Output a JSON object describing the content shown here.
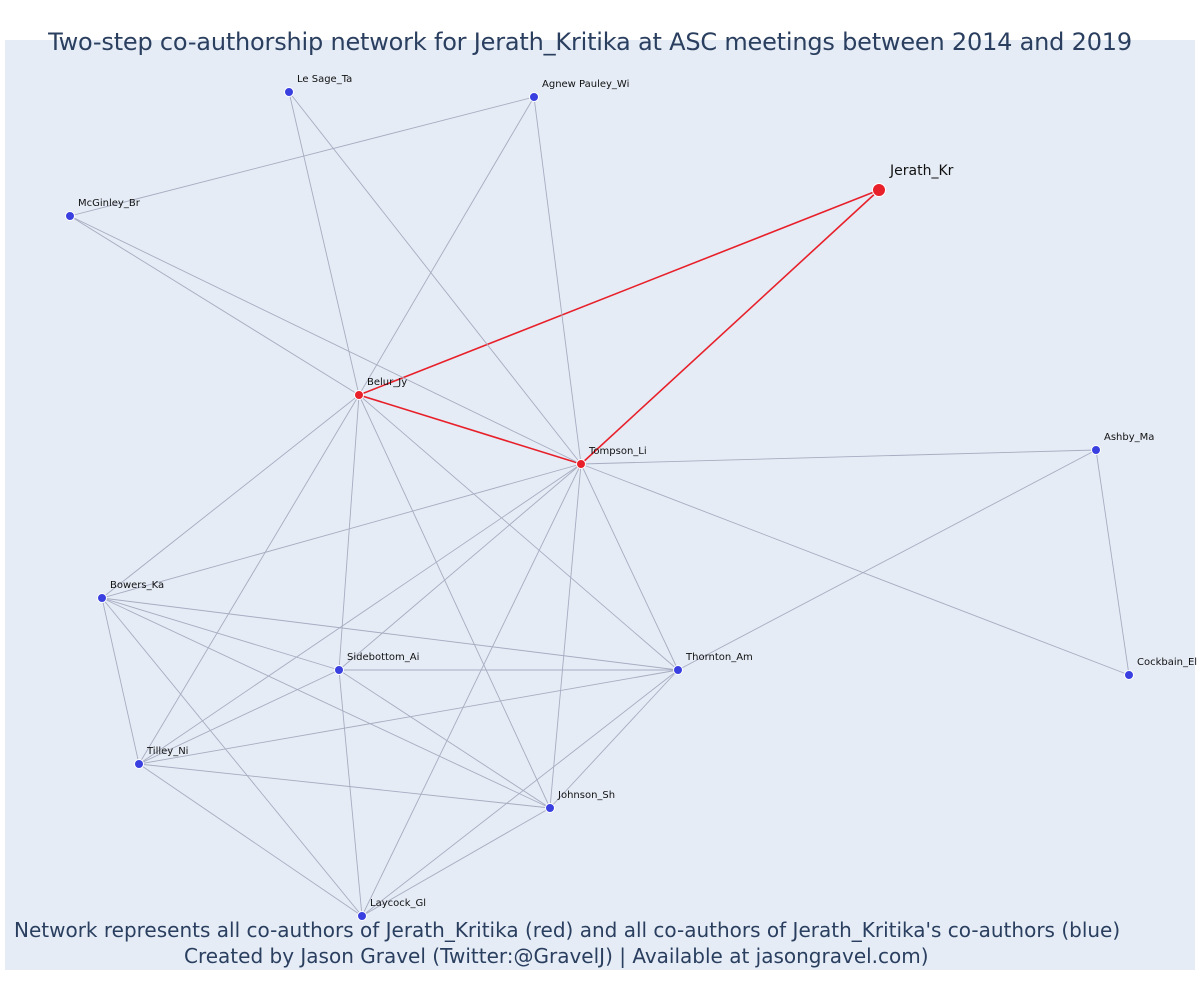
{
  "title": "Two-step co-authorship network for Jerath_Kritika at ASC meetings between 2014 and 2019",
  "caption": {
    "line1": "Network represents all co-authors of Jerath_Kritika (red) and all co-authors of Jerath_Kritika's co-authors (blue)",
    "line2": "Created by Jason Gravel (Twitter:@GravelJ) | Available at jasongravel.com)"
  },
  "colors": {
    "background": "#e5ecf6",
    "red_node": "#e8202a",
    "blue_node": "#3a3fe0",
    "red_edge": "#e8202a",
    "grey_edge": "#a8acc0",
    "text": "#2a3f5f"
  },
  "nodes": [
    {
      "id": "Jerath_Kr",
      "label": "Jerath_Kr",
      "group": "focal"
    },
    {
      "id": "Belur_Jy",
      "label": "Belur_Jy",
      "group": "red"
    },
    {
      "id": "Tompson_Li",
      "label": "Tompson_Li",
      "group": "red"
    },
    {
      "id": "Le Sage_Ta",
      "label": "Le Sage_Ta",
      "group": "blue"
    },
    {
      "id": "Agnew Pauley_Wi",
      "label": "Agnew Pauley_Wi",
      "group": "blue"
    },
    {
      "id": "McGinley_Br",
      "label": "McGinley_Br",
      "group": "blue"
    },
    {
      "id": "Ashby_Ma",
      "label": "Ashby_Ma",
      "group": "blue"
    },
    {
      "id": "Bowers_Ka",
      "label": "Bowers_Ka",
      "group": "blue"
    },
    {
      "id": "Sidebottom_Ai",
      "label": "Sidebottom_Ai",
      "group": "blue"
    },
    {
      "id": "Thornton_Am",
      "label": "Thornton_Am",
      "group": "blue"
    },
    {
      "id": "Cockbain_El",
      "label": "Cockbain_El",
      "group": "blue"
    },
    {
      "id": "Tilley_Ni",
      "label": "Tilley_Ni",
      "group": "blue"
    },
    {
      "id": "Johnson_Sh",
      "label": "Johnson_Sh",
      "group": "blue"
    },
    {
      "id": "Laycock_Gl",
      "label": "Laycock_Gl",
      "group": "blue"
    }
  ],
  "edges": [
    [
      "Jerath_Kr",
      "Belur_Jy"
    ],
    [
      "Jerath_Kr",
      "Tompson_Li"
    ],
    [
      "Belur_Jy",
      "Tompson_Li"
    ],
    [
      "Le Sage_Ta",
      "Belur_Jy"
    ],
    [
      "Le Sage_Ta",
      "Tompson_Li"
    ],
    [
      "Agnew Pauley_Wi",
      "McGinley_Br"
    ],
    [
      "Agnew Pauley_Wi",
      "Belur_Jy"
    ],
    [
      "Agnew Pauley_Wi",
      "Tompson_Li"
    ],
    [
      "McGinley_Br",
      "Belur_Jy"
    ],
    [
      "McGinley_Br",
      "Tompson_Li"
    ],
    [
      "Belur_Jy",
      "Bowers_Ka"
    ],
    [
      "Belur_Jy",
      "Sidebottom_Ai"
    ],
    [
      "Belur_Jy",
      "Thornton_Am"
    ],
    [
      "Belur_Jy",
      "Tilley_Ni"
    ],
    [
      "Belur_Jy",
      "Johnson_Sh"
    ],
    [
      "Tompson_Li",
      "Ashby_Ma"
    ],
    [
      "Tompson_Li",
      "Cockbain_El"
    ],
    [
      "Tompson_Li",
      "Bowers_Ka"
    ],
    [
      "Tompson_Li",
      "Sidebottom_Ai"
    ],
    [
      "Tompson_Li",
      "Thornton_Am"
    ],
    [
      "Tompson_Li",
      "Tilley_Ni"
    ],
    [
      "Tompson_Li",
      "Johnson_Sh"
    ],
    [
      "Tompson_Li",
      "Laycock_Gl"
    ],
    [
      "Ashby_Ma",
      "Cockbain_El"
    ],
    [
      "Ashby_Ma",
      "Thornton_Am"
    ],
    [
      "Bowers_Ka",
      "Sidebottom_Ai"
    ],
    [
      "Bowers_Ka",
      "Thornton_Am"
    ],
    [
      "Bowers_Ka",
      "Tilley_Ni"
    ],
    [
      "Bowers_Ka",
      "Johnson_Sh"
    ],
    [
      "Bowers_Ka",
      "Laycock_Gl"
    ],
    [
      "Sidebottom_Ai",
      "Thornton_Am"
    ],
    [
      "Sidebottom_Ai",
      "Tilley_Ni"
    ],
    [
      "Sidebottom_Ai",
      "Johnson_Sh"
    ],
    [
      "Sidebottom_Ai",
      "Laycock_Gl"
    ],
    [
      "Thornton_Am",
      "Tilley_Ni"
    ],
    [
      "Thornton_Am",
      "Johnson_Sh"
    ],
    [
      "Thornton_Am",
      "Laycock_Gl"
    ],
    [
      "Tilley_Ni",
      "Johnson_Sh"
    ],
    [
      "Tilley_Ni",
      "Laycock_Gl"
    ],
    [
      "Johnson_Sh",
      "Laycock_Gl"
    ]
  ]
}
